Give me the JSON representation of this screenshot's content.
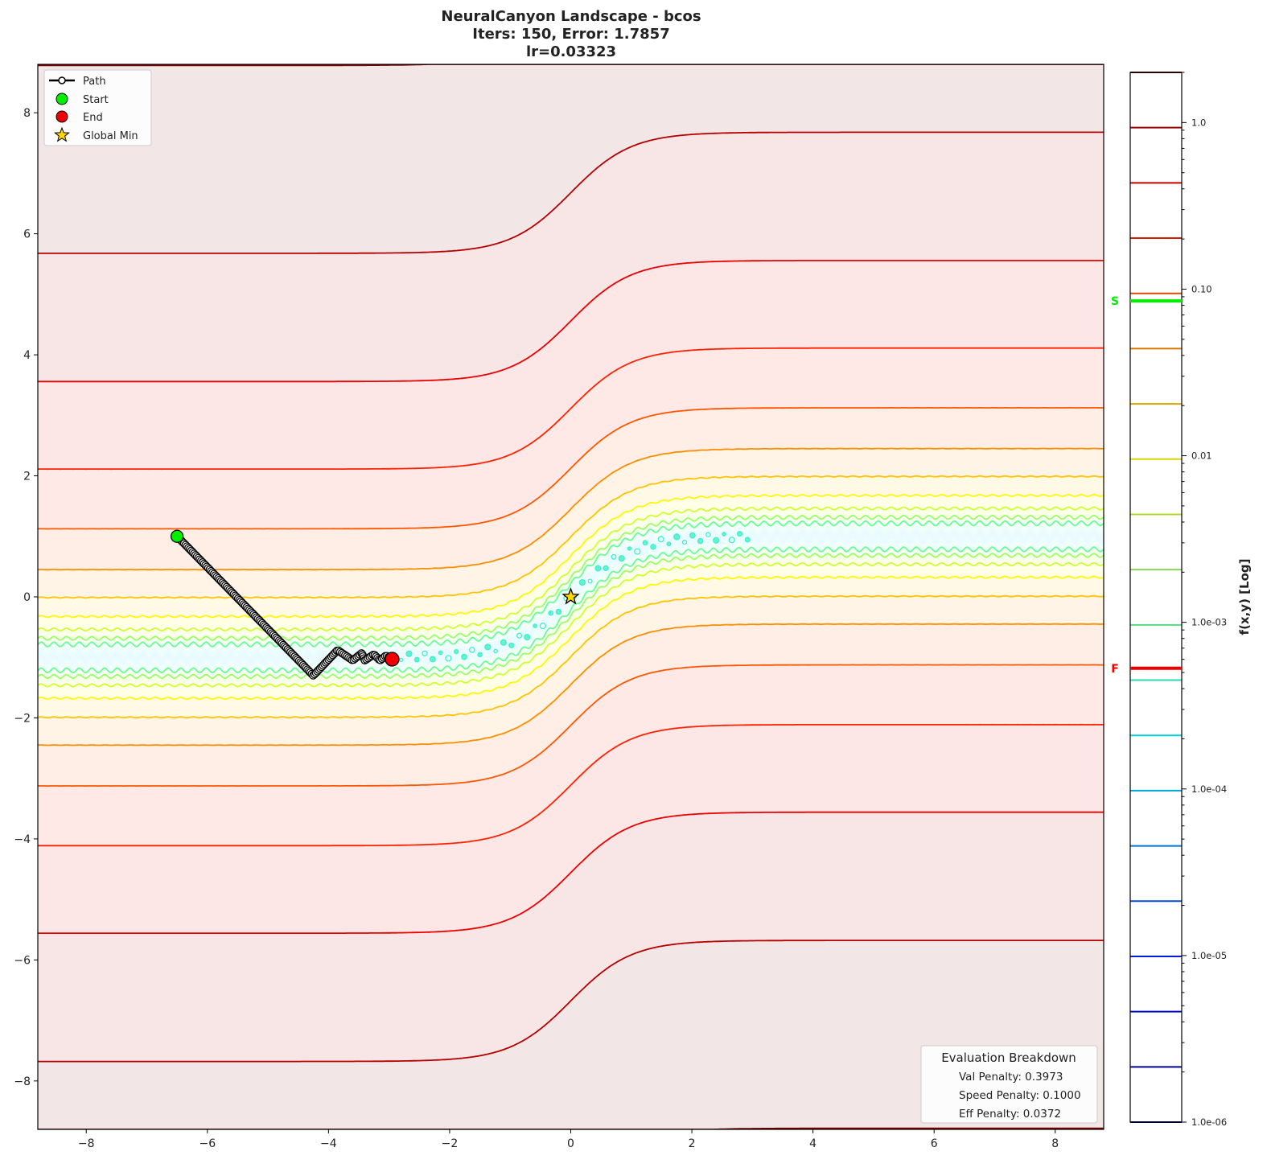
{
  "chart_data": {
    "type": "contour",
    "title_lines": [
      "NeuralCanyon Landscape - bcos",
      "Iters: 150, Error: 1.7857",
      "lr=0.03323"
    ],
    "xlim": [
      -8.8,
      8.8
    ],
    "ylim": [
      -8.8,
      8.8
    ],
    "xticks": [
      -8,
      -6,
      -4,
      -2,
      0,
      2,
      4,
      6,
      8
    ],
    "yticks": [
      -8,
      -6,
      -4,
      -2,
      0,
      2,
      4,
      6,
      8
    ],
    "grid": false,
    "colormap": "jet",
    "colorbar": {
      "label": "f(x,y) [Log]",
      "scale": "log",
      "range": [
        1e-06,
        2.0
      ],
      "num_levels": 20,
      "tick_values": [
        1e-06,
        1e-05,
        0.0001,
        0.001,
        0.01,
        0.1,
        1.0
      ],
      "tick_labels": [
        "1.0e-06",
        "1.0e-05",
        "1.0e-04",
        "1.0e-03",
        "0.01",
        "0.10",
        "1.0"
      ],
      "markers": [
        {
          "label": "S",
          "value": 0.085,
          "color": "#00ee00"
        },
        {
          "label": "F",
          "value": 0.00053,
          "color": "#ee0000"
        }
      ]
    },
    "path": {
      "iterations": 150,
      "waypoints": [
        [
          -6.5,
          1.0
        ],
        [
          -4.25,
          -1.3
        ],
        [
          -3.85,
          -0.88
        ],
        [
          -3.6,
          -1.05
        ],
        [
          -3.45,
          -0.93
        ],
        [
          -3.4,
          -1.05
        ],
        [
          -3.25,
          -0.95
        ],
        [
          -3.15,
          -1.05
        ],
        [
          -3.05,
          -0.97
        ],
        [
          -2.95,
          -1.03
        ]
      ],
      "start": [
        -6.5,
        1.0
      ],
      "end": [
        -2.95,
        -1.03
      ]
    },
    "global_min": [
      0,
      0
    ],
    "legend": {
      "placement": "upper-left",
      "entries": [
        {
          "label": "Path",
          "kind": "line-marker",
          "color": "#000000"
        },
        {
          "label": "Start",
          "kind": "circle",
          "color": "#00ee00"
        },
        {
          "label": "End",
          "kind": "circle",
          "color": "#ee0000"
        },
        {
          "label": "Global Min",
          "kind": "star",
          "color": "#ffd700"
        }
      ]
    },
    "evaluation": {
      "title": "Evaluation Breakdown",
      "lines": [
        "Val Penalty: 0.3973",
        "Speed Penalty: 0.1000",
        "Eff Penalty: 0.0372"
      ],
      "placement": "lower-right"
    }
  }
}
